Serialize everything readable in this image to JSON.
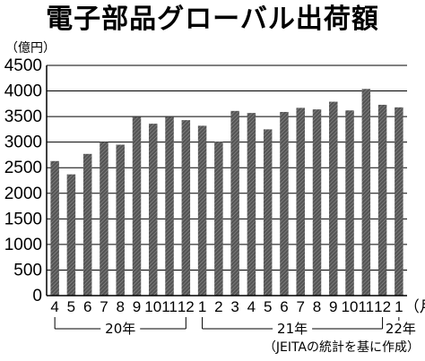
{
  "chart_data": {
    "type": "bar",
    "title": "電子部品グローバル出荷額",
    "ylabel": "（億円）",
    "xunit": "（月）",
    "source": "（JEITAの統計を基に作成）",
    "ylim": [
      0,
      4500
    ],
    "yticks": [
      "0",
      "500",
      "1000",
      "1500",
      "2000",
      "2500",
      "3000",
      "3500",
      "4000",
      "4500"
    ],
    "categories": [
      "4",
      "5",
      "6",
      "7",
      "8",
      "9",
      "10",
      "11",
      "12",
      "1",
      "2",
      "3",
      "4",
      "5",
      "6",
      "7",
      "8",
      "9",
      "10",
      "11",
      "12",
      "1"
    ],
    "values": [
      2630,
      2370,
      2770,
      3000,
      2950,
      3490,
      3360,
      3490,
      3430,
      3320,
      3010,
      3610,
      3570,
      3250,
      3590,
      3670,
      3640,
      3790,
      3620,
      4040,
      3730,
      3680
    ],
    "bar_color": "#555555",
    "year_groups": [
      {
        "label": "20年"
      },
      {
        "label": "21年"
      },
      {
        "label": "22年"
      }
    ]
  }
}
